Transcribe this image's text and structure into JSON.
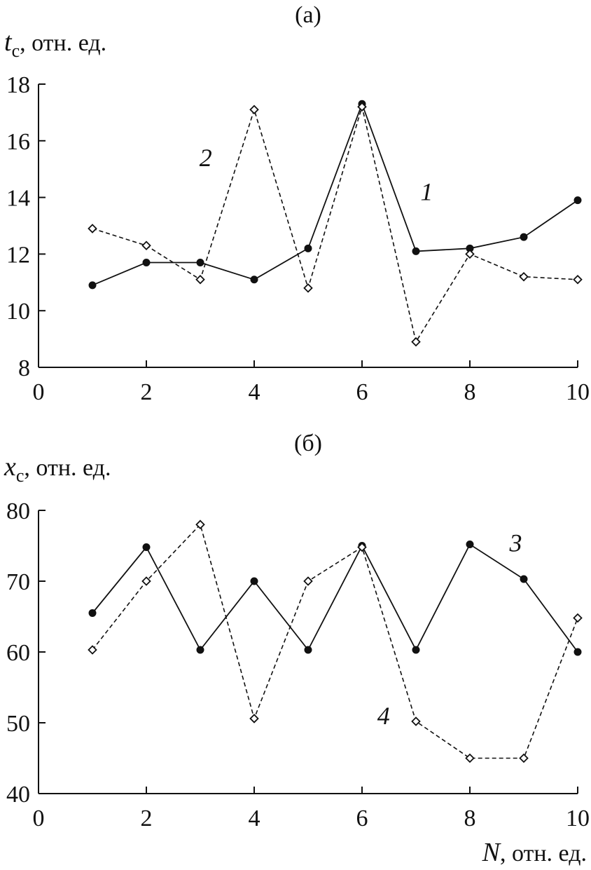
{
  "chart_data": [
    {
      "type": "line",
      "panel_label": "(а)",
      "ylabel_var": "t",
      "ylabel_sub": "c",
      "ylabel_unit": ", отн. ед.",
      "xlim": [
        0,
        10
      ],
      "ylim": [
        8,
        18
      ],
      "xticks": [
        0,
        2,
        4,
        6,
        8,
        10
      ],
      "yticks": [
        8,
        10,
        12,
        14,
        16,
        18
      ],
      "series": [
        {
          "name": "1",
          "style": "solid-filled-circle",
          "label_at": [
            7.2,
            13.9
          ],
          "x": [
            1,
            2,
            3,
            4,
            5,
            6,
            7,
            8,
            9,
            10
          ],
          "y": [
            10.9,
            11.7,
            11.7,
            11.1,
            12.2,
            17.3,
            12.1,
            12.2,
            12.6,
            13.9
          ]
        },
        {
          "name": "2",
          "style": "dashed-open-diamond",
          "label_at": [
            3.1,
            15.1
          ],
          "x": [
            1,
            2,
            3,
            4,
            5,
            6,
            7,
            8,
            9,
            10
          ],
          "y": [
            12.9,
            12.3,
            11.1,
            17.1,
            10.8,
            17.2,
            8.9,
            12.0,
            11.2,
            11.1
          ]
        }
      ]
    },
    {
      "type": "line",
      "panel_label": "(б)",
      "ylabel_var": "x",
      "ylabel_sub": "c",
      "ylabel_unit": ", отн. ед.",
      "xlabel_var": "N",
      "xlabel_unit": ", отн. ед.",
      "xlim": [
        0,
        10
      ],
      "ylim": [
        40,
        80
      ],
      "xticks": [
        0,
        2,
        4,
        6,
        8,
        10
      ],
      "yticks": [
        40,
        50,
        60,
        70,
        80
      ],
      "series": [
        {
          "name": "3",
          "style": "solid-filled-circle",
          "label_at": [
            8.85,
            74.2
          ],
          "x": [
            1,
            2,
            3,
            4,
            5,
            6,
            7,
            8,
            9,
            10
          ],
          "y": [
            65.5,
            74.8,
            60.3,
            70.0,
            60.3,
            75.0,
            60.3,
            75.2,
            70.3,
            60.0
          ]
        },
        {
          "name": "4",
          "style": "dashed-open-diamond",
          "label_at": [
            6.4,
            49.8
          ],
          "x": [
            1,
            2,
            3,
            4,
            5,
            6,
            7,
            8,
            9,
            10
          ],
          "y": [
            60.3,
            70.0,
            78.0,
            50.6,
            70.0,
            74.8,
            50.2,
            45.0,
            45.0,
            64.8
          ]
        }
      ]
    }
  ]
}
